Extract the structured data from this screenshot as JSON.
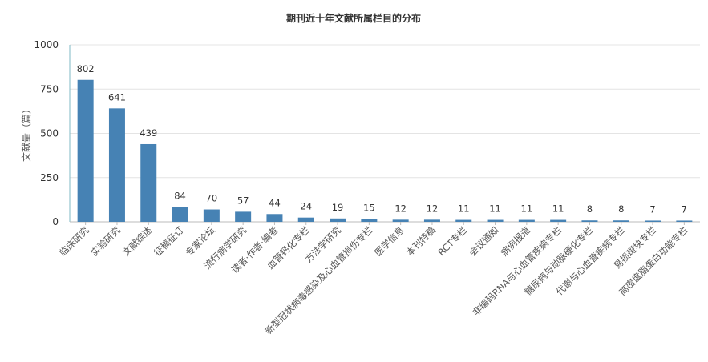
{
  "chart_data": {
    "type": "bar",
    "title": "期刊近十年文献所属栏目的分布",
    "xlabel": "",
    "ylabel": "文献量（篇）",
    "ylim": [
      0,
      1000
    ],
    "yticks": [
      0,
      250,
      500,
      750,
      1000
    ],
    "grid": true,
    "bar_color": "#4682b4",
    "categories": [
      "临床研究",
      "实验研究",
      "文献综述",
      "征稿征订",
      "专家论坛",
      "流行病学研究",
      "读者·作者·编者",
      "血管钙化专栏",
      "方法学研究",
      "新型冠状病毒感染及心血管损伤专栏",
      "医学信息",
      "本刊特稿",
      "RCT专栏",
      "会议通知",
      "病例报道",
      "非编码RNA与心血管疾病专栏",
      "糖尿病与动脉硬化专栏",
      "代谢与心血管疾病专栏",
      "易损斑块专栏",
      "高密度脂蛋白功能专栏"
    ],
    "values": [
      802,
      641,
      439,
      84,
      70,
      57,
      44,
      24,
      19,
      15,
      12,
      12,
      11,
      11,
      11,
      11,
      8,
      8,
      7,
      7
    ]
  }
}
